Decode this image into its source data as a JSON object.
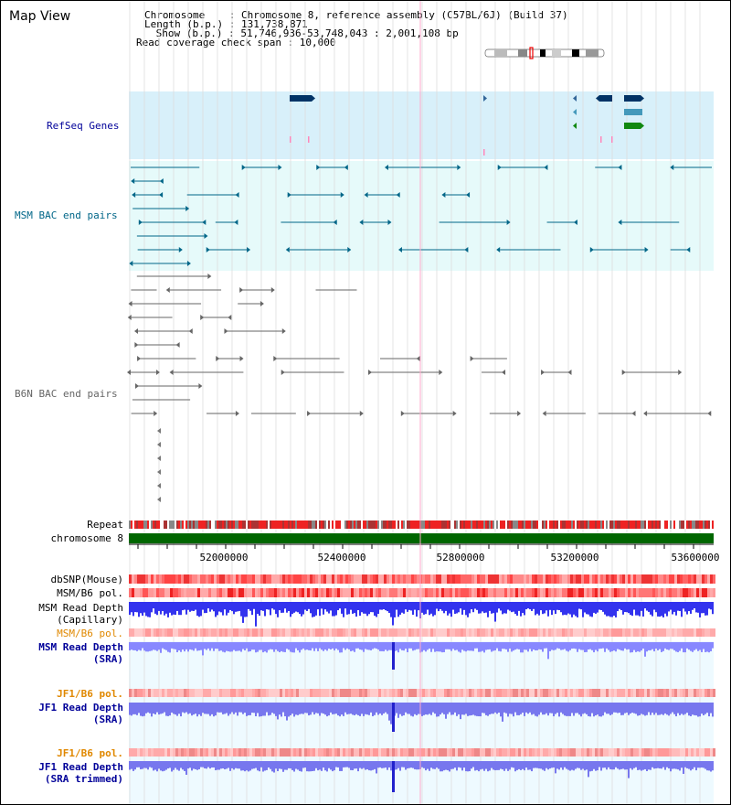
{
  "page": {
    "title": "Map View"
  },
  "info": {
    "line1": "Chromosome    : Chromosome 8, reference assembly (C57BL/6J) (Build 37)",
    "line2": "Length (b.p.) : 131,738,871",
    "line3": " Show (b.p.) : 51,746,936-53,748,043 : 2,001,108 bp",
    "line4": "Read coverage check span : 10,000"
  },
  "tracks": {
    "refseq": {
      "label": "RefSeq Genes",
      "color": "#000099",
      "bg": "#d8f0fa"
    },
    "msm_bac": {
      "label": "MSM BAC end pairs",
      "color": "#006688",
      "bg": "#e6fafa"
    },
    "b6n_bac": {
      "label": "B6N BAC end pairs",
      "color": "#666666"
    },
    "repeat": {
      "label": "Repeat"
    },
    "chromosome": {
      "label": "chromosome 8",
      "color": "#006600"
    },
    "dbsnp": {
      "label": "dbSNP(Mouse)"
    },
    "msm_b6_pol": {
      "label": "MSM/B6 pol."
    },
    "msm_depth_cap": {
      "label_1": "MSM Read Depth",
      "label_2": "(Capillary)"
    },
    "msm_b6_pol2": {
      "label": "MSM/B6 pol.",
      "color": "#e08800"
    },
    "msm_depth_sra": {
      "label_1": "MSM Read Depth",
      "label_2": "(SRA)",
      "color": "#000099"
    },
    "jf1_pol": {
      "label": "JF1/B6 pol.",
      "color": "#e08800"
    },
    "jf1_depth_sra": {
      "label_1": "JF1 Read Depth",
      "label_2": "(SRA)",
      "color": "#000099"
    },
    "jf1_pol2": {
      "label": "JF1/B6 pol.",
      "color": "#e08800"
    },
    "jf1_depth_trim": {
      "label_1": "JF1 Read Depth",
      "label_2": "(SRA trimmed)",
      "color": "#000099"
    }
  },
  "axis": {
    "ticks": [
      "52000000",
      "52400000",
      "52800000",
      "53200000",
      "53600000"
    ]
  },
  "colors": {
    "red": "#ee2222",
    "pink": "#ff9999",
    "blue": "#3333ee",
    "lightblue": "#8888ff",
    "grid": "#cccccc"
  }
}
